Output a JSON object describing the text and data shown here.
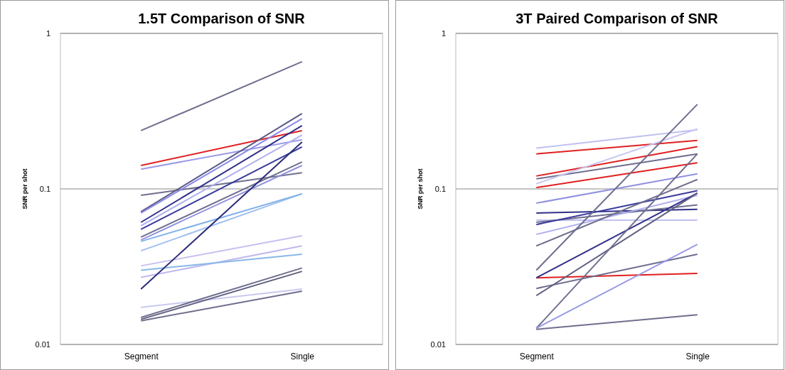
{
  "chart_data": [
    {
      "type": "line",
      "title": "1.5T Comparison of SNR",
      "ylabel": "SNR per shot",
      "categories": [
        "Segment",
        "Single"
      ],
      "log": true,
      "ylim": [
        0.01,
        1
      ],
      "yticks": [
        0.01,
        0.1,
        1
      ],
      "grid": "y",
      "marker": "none",
      "series": [
        {
          "color": "#6e6e8e",
          "values": [
            0.237,
            0.657
          ]
        },
        {
          "color": "#e02020",
          "values": [
            0.1415,
            0.237
          ]
        },
        {
          "color": "#9a9ae8",
          "values": [
            0.134,
            0.207
          ]
        },
        {
          "color": "#6e6e8e",
          "values": [
            0.091,
            0.127
          ]
        },
        {
          "color": "#5a5a88",
          "values": [
            0.0714,
            0.305
          ]
        },
        {
          "color": "#8a8ae6",
          "values": [
            0.07,
            0.283
          ]
        },
        {
          "color": "#30308a",
          "values": [
            0.061,
            0.255
          ]
        },
        {
          "color": "#b0b0f0",
          "values": [
            0.058,
            0.222
          ]
        },
        {
          "color": "#3a3aa0",
          "values": [
            0.055,
            0.186
          ]
        },
        {
          "color": "#6e6e8e",
          "values": [
            0.049,
            0.149
          ]
        },
        {
          "color": "#9090e0",
          "values": [
            0.047,
            0.1415
          ]
        },
        {
          "color": "#a0c0f0",
          "values": [
            0.04,
            0.093
          ]
        },
        {
          "color": "#80b0e8",
          "values": [
            0.046,
            0.093
          ]
        },
        {
          "color": "#c8c0f0",
          "values": [
            0.032,
            0.05
          ]
        },
        {
          "color": "#c0b8ee",
          "values": [
            0.027,
            0.043
          ]
        },
        {
          "color": "#88b8e8",
          "values": [
            0.03,
            0.038
          ]
        },
        {
          "color": "#2a2a7a",
          "values": [
            0.0227,
            0.2
          ]
        },
        {
          "color": "#c8c8f0",
          "values": [
            0.0173,
            0.0227
          ]
        },
        {
          "color": "#6e6e8e",
          "values": [
            0.0149,
            0.031
          ]
        },
        {
          "color": "#5e5e80",
          "values": [
            0.0145,
            0.0295
          ]
        },
        {
          "color": "#6e6e8e",
          "values": [
            0.0142,
            0.022
          ]
        }
      ]
    },
    {
      "type": "line",
      "title": "3T Paired Comparison of SNR",
      "ylabel": "SNR per shot",
      "categories": [
        "Segment",
        "Single"
      ],
      "log": true,
      "ylim": [
        0.01,
        1
      ],
      "yticks": [
        0.01,
        0.1,
        1
      ],
      "grid": "y",
      "marker": "none",
      "series": [
        {
          "color": "#c0c0f2",
          "values": [
            0.183,
            0.24
          ]
        },
        {
          "color": "#e02020",
          "values": [
            0.168,
            0.205
          ]
        },
        {
          "color": "#e02020",
          "values": [
            0.121,
            0.187
          ]
        },
        {
          "color": "#6e6e8e",
          "values": [
            0.116,
            0.168
          ]
        },
        {
          "color": "#c8c8f2",
          "values": [
            0.108,
            0.243
          ]
        },
        {
          "color": "#e02020",
          "values": [
            0.102,
            0.147
          ]
        },
        {
          "color": "#9090e0",
          "values": [
            0.081,
            0.125
          ]
        },
        {
          "color": "#30308a",
          "values": [
            0.07,
            0.074
          ]
        },
        {
          "color": "#c0c0f0",
          "values": [
            0.063,
            0.063
          ]
        },
        {
          "color": "#6e6e8e",
          "values": [
            0.061,
            0.079
          ]
        },
        {
          "color": "#3a3aa0",
          "values": [
            0.059,
            0.0975
          ]
        },
        {
          "color": "#b0b0f0",
          "values": [
            0.051,
            0.091
          ]
        },
        {
          "color": "#6e6e8e",
          "values": [
            0.043,
            0.115
          ]
        },
        {
          "color": "#6e6e8e",
          "values": [
            0.03,
            0.35
          ]
        },
        {
          "color": "#e02020",
          "values": [
            0.0268,
            0.0286
          ]
        },
        {
          "color": "#30308a",
          "values": [
            0.0268,
            0.094
          ]
        },
        {
          "color": "#6e6e8e",
          "values": [
            0.0229,
            0.038
          ]
        },
        {
          "color": "#5e5e80",
          "values": [
            0.0206,
            0.094
          ]
        },
        {
          "color": "#6e6e8e",
          "values": [
            0.0127,
            0.168
          ]
        },
        {
          "color": "#9a9ae8",
          "values": [
            0.0127,
            0.044
          ]
        },
        {
          "color": "#6e6e8e",
          "values": [
            0.0125,
            0.0155
          ]
        }
      ]
    }
  ]
}
